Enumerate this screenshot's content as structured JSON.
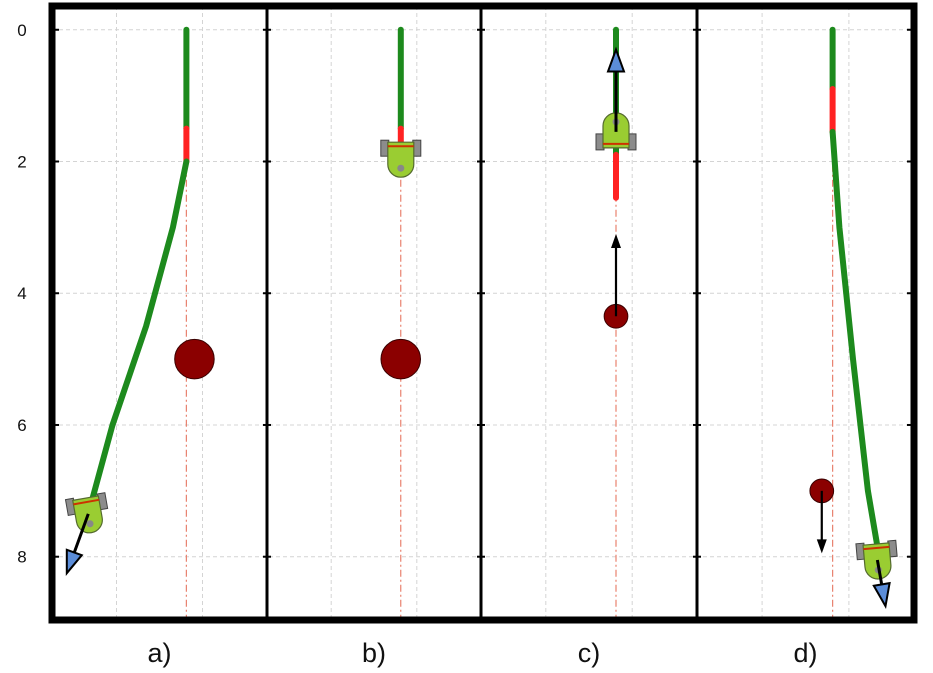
{
  "y_axis": {
    "ticks": [
      0,
      2,
      4,
      6,
      8
    ],
    "range": [
      -0.3,
      8.9
    ],
    "inverted": true,
    "grid": true
  },
  "colors": {
    "frame": "#000000",
    "grid": "#d4d4d4",
    "path_green": "#1d8a1d",
    "path_red": "#ff2222",
    "reference_line": "#e8826f",
    "obstacle": "#8b0000",
    "robot_body": "#9acd32",
    "robot_wheel": "#8c8c8c",
    "robot_stripe": "#cc3300",
    "arrow_black": "#000000",
    "arrow_blue": "#5b8dd9"
  },
  "panels": [
    {
      "label": "a)",
      "x_range": [
        -1.0,
        0.6
      ],
      "path": {
        "green": [
          [
            0,
            0
          ],
          [
            0,
            1.5
          ]
        ],
        "red": [
          [
            0,
            1.5
          ],
          [
            0,
            2.0
          ]
        ],
        "green2": [
          [
            0,
            2.0
          ],
          [
            -0.1,
            3.0
          ],
          [
            -0.3,
            4.5
          ],
          [
            -0.55,
            6.0
          ],
          [
            -0.75,
            7.5
          ]
        ]
      },
      "obstacle": {
        "x": 0.06,
        "y": 5.0,
        "r": 0.3,
        "arrow": null
      },
      "robot": {
        "x": -0.73,
        "y": 7.35,
        "heading": -10,
        "arrow": {
          "dx": -0.16,
          "dy": 0.9
        }
      }
    },
    {
      "label": "b)",
      "x_range": [
        -1.0,
        0.6
      ],
      "path": {
        "green": [
          [
            0,
            0
          ],
          [
            0,
            1.5
          ]
        ],
        "red": [
          [
            0,
            1.5
          ],
          [
            0,
            1.8
          ]
        ],
        "green2": []
      },
      "obstacle": {
        "x": 0.0,
        "y": 5.0,
        "r": 0.3,
        "arrow": null
      },
      "robot": {
        "x": 0.0,
        "y": 1.95,
        "heading": 0,
        "arrow": null
      }
    },
    {
      "label": "c)",
      "x_range": [
        -1.0,
        0.6
      ],
      "path": {
        "green": [
          [
            0,
            0
          ],
          [
            0,
            1.9
          ]
        ],
        "red": [
          [
            0,
            1.9
          ],
          [
            0,
            2.55
          ]
        ],
        "green2": []
      },
      "obstacle": {
        "x": 0.0,
        "y": 4.35,
        "r": 0.18,
        "arrow": {
          "dx": 0,
          "dy": -1.25
        }
      },
      "robot": {
        "x": 0.0,
        "y": 1.55,
        "heading": 180,
        "arrow": {
          "dx": 0,
          "dy": -1.25
        }
      }
    },
    {
      "label": "d)",
      "x_range": [
        -1.0,
        0.6
      ],
      "path": {
        "green": [
          [
            0,
            0
          ],
          [
            0,
            0.9
          ]
        ],
        "red": [
          [
            0,
            0.9
          ],
          [
            0,
            1.55
          ]
        ],
        "green2": [
          [
            0,
            1.55
          ],
          [
            0.05,
            3.0
          ],
          [
            0.15,
            5.0
          ],
          [
            0.26,
            7.0
          ],
          [
            0.36,
            8.2
          ]
        ]
      },
      "obstacle": {
        "x": -0.08,
        "y": 7.0,
        "r": 0.18,
        "arrow": {
          "dx": 0,
          "dy": 0.95
        }
      },
      "robot": {
        "x": 0.33,
        "y": 8.05,
        "heading": -5,
        "arrow": {
          "dx": 0.06,
          "dy": 0.7
        }
      }
    }
  ]
}
